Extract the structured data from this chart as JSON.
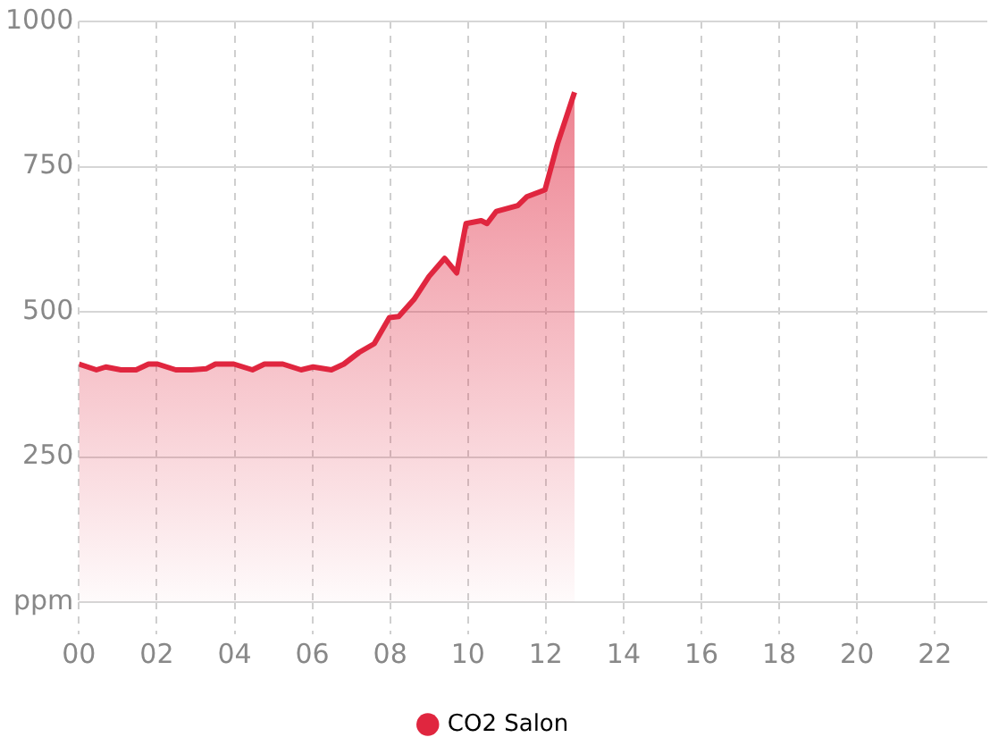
{
  "chart_data": {
    "type": "area",
    "x": [
      0,
      0.45,
      0.69,
      1.08,
      1.47,
      1.79,
      2.02,
      2.49,
      2.89,
      3.28,
      3.51,
      3.98,
      4.46,
      4.77,
      5.24,
      5.71,
      6.02,
      6.49,
      6.81,
      7.2,
      7.59,
      7.98,
      8.22,
      8.61,
      9.0,
      9.4,
      9.71,
      9.95,
      10.34,
      10.49,
      10.73,
      11.28,
      11.51,
      11.98,
      12.3,
      12.74
    ],
    "series": [
      {
        "name": "CO2 Salon",
        "color": "#e0263f",
        "values": [
          410,
          400,
          405,
          400,
          400,
          410,
          410,
          400,
          400,
          402,
          410,
          410,
          400,
          410,
          410,
          400,
          405,
          400,
          410,
          430,
          445,
          490,
          492,
          521,
          561,
          592,
          567,
          652,
          657,
          652,
          673,
          683,
          698,
          710,
          789,
          878
        ]
      }
    ],
    "xlim": [
      0,
      23.35
    ],
    "xticks": [
      {
        "value": 0,
        "label": "00"
      },
      {
        "value": 2,
        "label": "02"
      },
      {
        "value": 4,
        "label": "04"
      },
      {
        "value": 6,
        "label": "06"
      },
      {
        "value": 8,
        "label": "08"
      },
      {
        "value": 10,
        "label": "10"
      },
      {
        "value": 12,
        "label": "12"
      },
      {
        "value": 14,
        "label": "14"
      },
      {
        "value": 16,
        "label": "16"
      },
      {
        "value": 18,
        "label": "18"
      },
      {
        "value": 20,
        "label": "20"
      },
      {
        "value": 22,
        "label": "22"
      }
    ],
    "ylim": [
      0,
      1000
    ],
    "yticks": [
      {
        "value": 0,
        "label": "ppm"
      },
      250,
      500,
      750,
      1000
    ],
    "grid": true,
    "legend": "bottom",
    "marker": "none",
    "line_style": "solid"
  }
}
